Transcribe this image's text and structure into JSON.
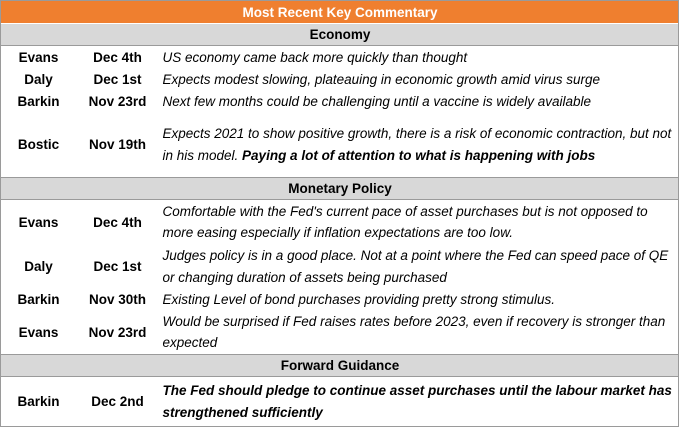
{
  "title": "Most Recent Key Commentary",
  "sections": [
    {
      "heading": "Economy",
      "rows": [
        {
          "name": "Evans",
          "date": "Dec 4th",
          "comment": "US economy came back more quickly than thought",
          "comment_bold": ""
        },
        {
          "name": "Daly",
          "date": "Dec 1st",
          "comment": "Expects modest slowing, plateauing in economic growth amid virus surge",
          "comment_bold": ""
        },
        {
          "name": "Barkin",
          "date": "Nov 23rd",
          "comment": "Next few months could be challenging until a vaccine is widely available",
          "comment_bold": ""
        },
        {
          "name": "Bostic",
          "date": "Nov 19th",
          "comment": "Expects 2021 to show positive growth, there is a risk of economic contraction, but not in his model.  ",
          "comment_bold": "Paying a lot of attention to what is happening with jobs"
        }
      ]
    },
    {
      "heading": "Monetary Policy",
      "rows": [
        {
          "name": "Evans",
          "date": "Dec 4th",
          "comment": "Comfortable with the Fed's current pace of asset purchases but is not opposed to more easing especially if inflation expectations are too low.",
          "comment_bold": ""
        },
        {
          "name": "Daly",
          "date": "Dec 1st",
          "comment": "Judges policy is in a good place. Not at a point where the Fed can speed pace of QE or changing duration of assets being purchased",
          "comment_bold": ""
        },
        {
          "name": "Barkin",
          "date": "Nov 30th",
          "comment": "Existing Level of bond purchases providing pretty strong stimulus.",
          "comment_bold": ""
        },
        {
          "name": "Evans",
          "date": "Nov 23rd",
          "comment": "Would be surprised if Fed raises rates before 2023, even if recovery is stronger than expected",
          "comment_bold": ""
        }
      ]
    },
    {
      "heading": "Forward Guidance",
      "rows": [
        {
          "name": "Barkin",
          "date": "Dec 2nd",
          "comment": "",
          "comment_bold": "The Fed should pledge to continue asset purchases until the labour market has strengthened sufficiently"
        }
      ]
    }
  ]
}
